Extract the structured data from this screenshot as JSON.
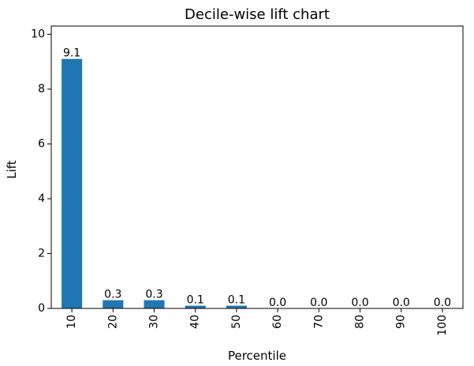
{
  "chart_data": {
    "type": "bar",
    "title": "Decile-wise lift chart",
    "xlabel": "Percentile",
    "ylabel": "Lift",
    "categories": [
      "10",
      "20",
      "30",
      "40",
      "50",
      "60",
      "70",
      "80",
      "90",
      "100"
    ],
    "values": [
      9.1,
      0.3,
      0.3,
      0.1,
      0.1,
      0.0,
      0.0,
      0.0,
      0.0,
      0.0
    ],
    "data_labels": [
      "9.1",
      "0.3",
      "0.3",
      "0.1",
      "0.1",
      "0.0",
      "0.0",
      "0.0",
      "0.0",
      "0.0"
    ],
    "ylim": [
      0,
      10.3
    ],
    "yticks": [
      0,
      2,
      4,
      6,
      8,
      10
    ],
    "ytick_labels": [
      "0",
      "2",
      "4",
      "6",
      "8",
      "10"
    ],
    "grid": false,
    "legend": false,
    "x_tick_rotation": "vertical",
    "bar_color": "#1f77b4"
  }
}
